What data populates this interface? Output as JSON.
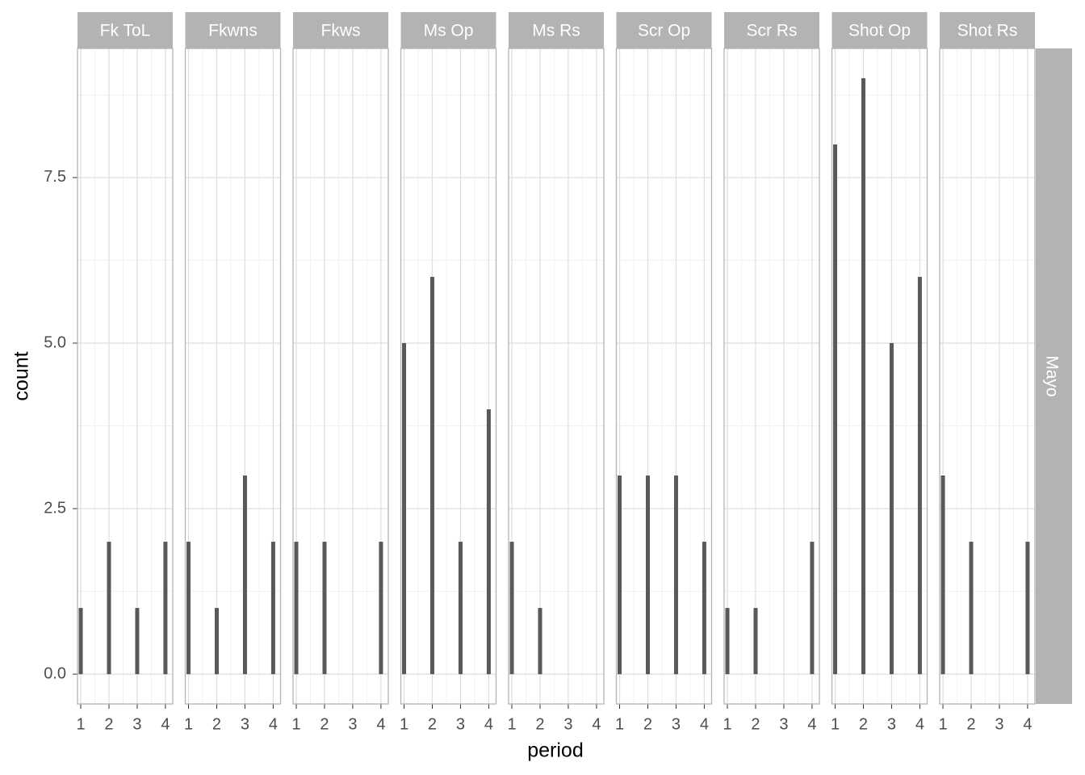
{
  "chart_data": {
    "type": "bar",
    "x_label": "period",
    "y_label": "count",
    "row_strip": "Mayo",
    "color": "#595959",
    "xlim": [
      0.885,
      4.26
    ],
    "xticks": [
      1,
      2,
      3,
      4
    ],
    "ylim": [
      -0.45,
      9.45
    ],
    "yticks": [
      {
        "value": 0,
        "label": "0.0"
      },
      2.5,
      {
        "value": 5,
        "label": "5.0"
      },
      7.5
    ],
    "grid": true,
    "facets": [
      {
        "title": "Fk ToL",
        "x": [
          1,
          2,
          3,
          4
        ],
        "values": [
          1,
          2,
          1,
          2
        ]
      },
      {
        "title": "Fkwns",
        "x": [
          1,
          2,
          3,
          4
        ],
        "values": [
          2,
          1,
          3,
          2
        ]
      },
      {
        "title": "Fkws",
        "x": [
          1,
          2,
          4
        ],
        "values": [
          2,
          2,
          2
        ]
      },
      {
        "title": "Ms Op",
        "x": [
          1,
          2,
          3,
          4
        ],
        "values": [
          5,
          6,
          2,
          4
        ]
      },
      {
        "title": "Ms Rs",
        "x": [
          1,
          2
        ],
        "values": [
          2,
          1
        ]
      },
      {
        "title": "Scr Op",
        "x": [
          1,
          2,
          3,
          4
        ],
        "values": [
          3,
          3,
          3,
          2
        ]
      },
      {
        "title": "Scr Rs",
        "x": [
          1,
          2,
          4
        ],
        "values": [
          1,
          1,
          2
        ]
      },
      {
        "title": "Shot Op",
        "x": [
          1,
          2,
          3,
          4
        ],
        "values": [
          8,
          9,
          5,
          6
        ]
      },
      {
        "title": "Shot Rs",
        "x": [
          1,
          2,
          4
        ],
        "values": [
          3,
          2,
          2
        ]
      }
    ]
  }
}
